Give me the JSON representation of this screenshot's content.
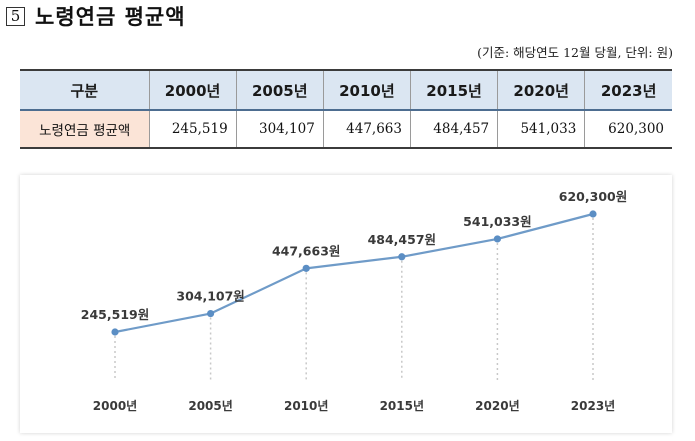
{
  "heading": {
    "number": "5",
    "title": "노령연금 평균액"
  },
  "unit_note": "(기준: 해당연도 12월 당월, 단위: 원)",
  "table": {
    "header_label": "구분",
    "columns": [
      "2000년",
      "2005년",
      "2010년",
      "2015년",
      "2020년",
      "2023년"
    ],
    "row_label": "노령연금 평균액",
    "values": [
      "245,519",
      "304,107",
      "447,663",
      "484,457",
      "541,033",
      "620,300"
    ]
  },
  "chart_data": {
    "type": "line",
    "categories": [
      "2000년",
      "2005년",
      "2010년",
      "2015년",
      "2020년",
      "2023년"
    ],
    "series": [
      {
        "values": [
          245519,
          304107,
          447663,
          484457,
          541033,
          620300
        ]
      }
    ],
    "data_labels": [
      "245,519원",
      "304,107원",
      "447,663원",
      "484,457원",
      "541,033원",
      "620,300원"
    ],
    "grid": false,
    "legend": "none",
    "colors": {
      "line": "#6f9bc8",
      "point": "#5b8ec4",
      "dropline": "#c8c8c8"
    }
  }
}
